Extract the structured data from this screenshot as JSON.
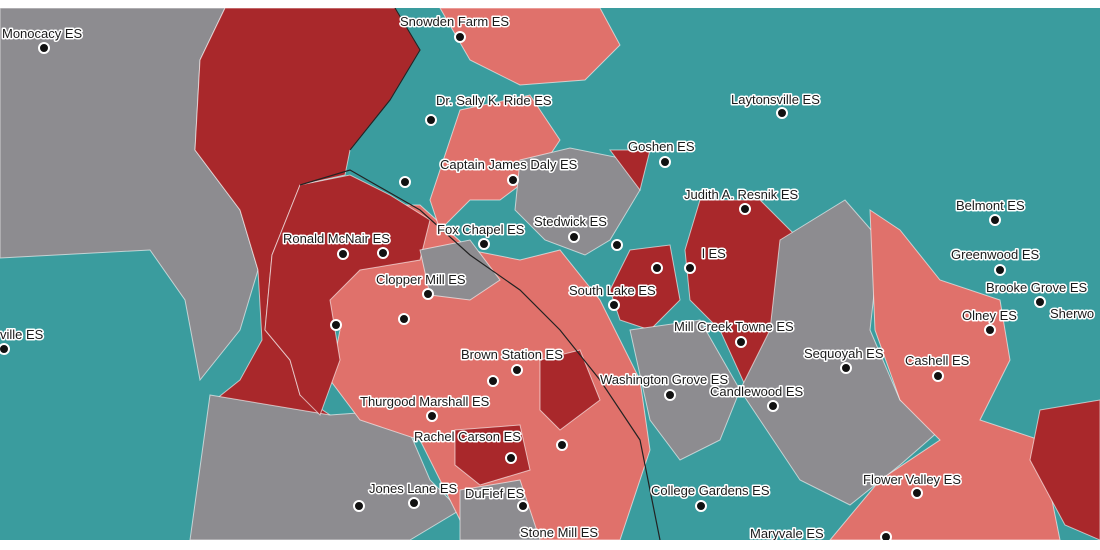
{
  "labels": [
    "Monocacy ES",
    "Snowden Farm ES",
    "Dr. Sally K. Ride ES",
    "Laytonsville ES",
    "Goshen ES",
    "Captain James Daly ES",
    "Judith A. Resnik ES",
    "Stedwick ES",
    "Fox Chapel ES",
    "Ronald McNair ES",
    "l ES",
    "Belmont ES",
    "Greenwood ES",
    "Clopper Mill ES",
    "South Lake ES",
    "Brooke Grove ES",
    "Sherwo",
    "Olney ES",
    "ville ES",
    "Mill Creek Towne ES",
    "Brown Station ES",
    "Sequoyah ES",
    "Cashell ES",
    "Washington Grove ES",
    "Candlewood ES",
    "Thurgood Marshall ES",
    "Rachel Carson ES",
    "Flower Valley ES",
    "Jones Lane ES",
    "DuFief ES",
    "College Gardens ES",
    "Stone Mill ES",
    "Maryvale ES"
  ]
}
